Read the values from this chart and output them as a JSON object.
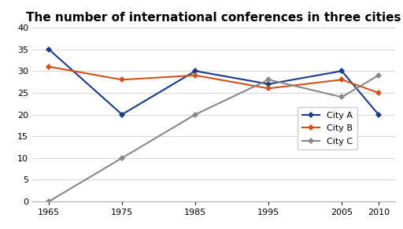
{
  "title": "The number of international conferences in three cities",
  "x": [
    1965,
    1975,
    1985,
    1995,
    2005,
    2010
  ],
  "city_a": [
    35,
    20,
    30,
    27,
    30,
    20
  ],
  "city_b": [
    31,
    28,
    29,
    26,
    28,
    25
  ],
  "city_c": [
    0,
    10,
    20,
    28,
    24,
    29
  ],
  "color_a": "#1a3a8a",
  "color_b": "#d4501a",
  "color_c": "#888888",
  "ylim": [
    0,
    40
  ],
  "yticks": [
    0,
    5,
    10,
    15,
    20,
    25,
    30,
    35,
    40
  ],
  "xticks": [
    1965,
    1975,
    1985,
    1995,
    2005,
    2010
  ],
  "legend_labels": [
    "City A",
    "City B",
    "City C"
  ],
  "title_fontsize": 11,
  "tick_fontsize": 8,
  "background_color": "#ffffff"
}
